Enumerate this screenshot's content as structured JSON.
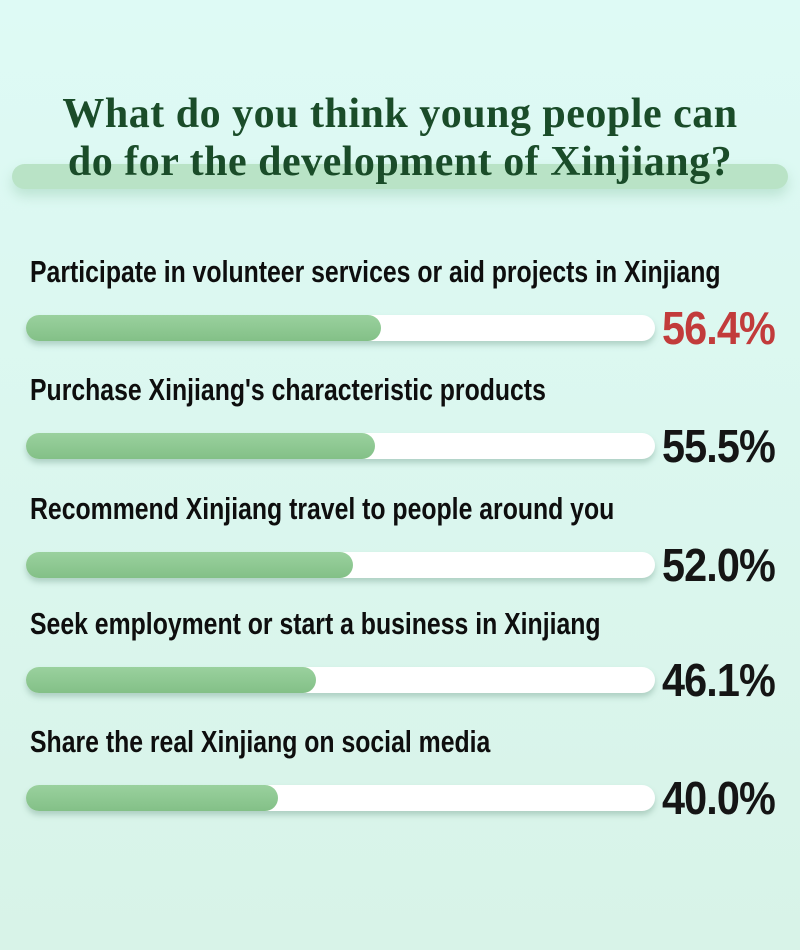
{
  "title": {
    "line1": "What do you think young people can",
    "line2": "do for the development of Xinjiang?"
  },
  "rows": [
    {
      "label": "Participate in volunteer services or aid projects in Xinjiang",
      "value": 56.4,
      "display": "56.4%",
      "value_color": "#c23b3b"
    },
    {
      "label": "Purchase Xinjiang's characteristic products",
      "value": 55.5,
      "display": "55.5%",
      "value_color": "#151515"
    },
    {
      "label": "Recommend Xinjiang travel to people around you",
      "value": 52.0,
      "display": "52.0%",
      "value_color": "#151515"
    },
    {
      "label": "Seek employment or start a business in Xinjiang",
      "value": 46.1,
      "display": "46.1%",
      "value_color": "#151515"
    },
    {
      "label": "Share the real Xinjiang on social media",
      "value": 40.0,
      "display": "40.0%",
      "value_color": "#151515"
    }
  ],
  "colors": {
    "background": "#dbf7ef",
    "title_text": "#1a4c29",
    "title_band": "#b9e3c6",
    "bar_fill": "#8bc78d",
    "bar_track": "#ffffff",
    "label_text": "#0e0e0e",
    "value_text": "#151515",
    "highlight_value_text": "#c23b3b"
  },
  "chart_data": {
    "type": "bar",
    "orientation": "horizontal",
    "title": "What do you think young people can do for the development of Xinjiang?",
    "categories": [
      "Participate in volunteer services or aid projects in Xinjiang",
      "Purchase Xinjiang's characteristic products",
      "Recommend Xinjiang travel to people around you",
      "Seek employment or start a business in Xinjiang",
      "Share the real Xinjiang on social media"
    ],
    "values": [
      56.4,
      55.5,
      52.0,
      46.1,
      40.0
    ],
    "value_labels": [
      "56.4%",
      "55.5%",
      "52.0%",
      "46.1%",
      "40.0%"
    ],
    "unit": "%",
    "xlim": [
      0,
      100
    ],
    "grid": false,
    "legend": false,
    "highlight_index": 0,
    "highlight_note": "top answer value shown in red"
  }
}
